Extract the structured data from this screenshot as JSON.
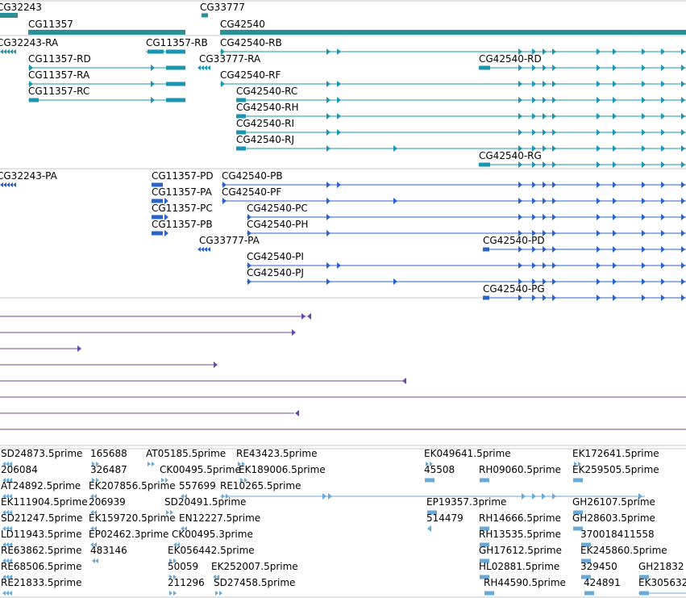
{
  "colors": {
    "gene": "#1a8a9a",
    "gene_bar": "#2a9098",
    "transcript": "#1a96b4",
    "protein": "#2a64c8",
    "lower": "#6a4aa8",
    "est": "#6aa8d8",
    "separator": "#c8c8c8",
    "text": "#000000"
  },
  "icons": {
    "forward_arrow": "arrow-right-icon",
    "reverse_arrow": "arrow-left-icon"
  },
  "genes": [
    {
      "label": "CG32243"
    },
    {
      "label": "CG33777"
    },
    {
      "label": "CG11357"
    },
    {
      "label": "CG42540"
    }
  ],
  "transcripts": [
    {
      "label": "CG32243-RA"
    },
    {
      "label": "CG11357-RB"
    },
    {
      "label": "CG42540-RB"
    },
    {
      "label": "CG11357-RD"
    },
    {
      "label": "CG33777-RA"
    },
    {
      "label": "CG42540-RD"
    },
    {
      "label": "CG11357-RA"
    },
    {
      "label": "CG42540-RF"
    },
    {
      "label": "CG11357-RC"
    },
    {
      "label": "CG42540-RC"
    },
    {
      "label": "CG42540-RH"
    },
    {
      "label": "CG42540-RI"
    },
    {
      "label": "CG42540-RJ"
    },
    {
      "label": "CG42540-RG"
    }
  ],
  "proteins": [
    {
      "label": "CG32243-PA"
    },
    {
      "label": "CG11357-PD"
    },
    {
      "label": "CG42540-PB"
    },
    {
      "label": "CG11357-PA"
    },
    {
      "label": "CG42540-PF"
    },
    {
      "label": "CG11357-PC"
    },
    {
      "label": "CG42540-PC"
    },
    {
      "label": "CG11357-PB"
    },
    {
      "label": "CG42540-PH"
    },
    {
      "label": "CG33777-PA"
    },
    {
      "label": "CG42540-PD"
    },
    {
      "label": "CG42540-PI"
    },
    {
      "label": "CG42540-PJ"
    },
    {
      "label": "CG42540-PG"
    }
  ],
  "ests": [
    {
      "label": "SD24873.5prime"
    },
    {
      "label": "165688"
    },
    {
      "label": "AT05185.5prime"
    },
    {
      "label": "RE43423.5prime"
    },
    {
      "label": "EK049641.5prime"
    },
    {
      "label": "EK172641.5prime"
    },
    {
      "label": "206084"
    },
    {
      "label": "326487"
    },
    {
      "label": "CK00495.5prime"
    },
    {
      "label": "EK189006.5prime"
    },
    {
      "label": "45508"
    },
    {
      "label": "RH09060.5prime"
    },
    {
      "label": "EK259505.5prime"
    },
    {
      "label": "AT24892.5prime"
    },
    {
      "label": "EK207856.5prime"
    },
    {
      "label": "557699"
    },
    {
      "label": "RE10265.5prime"
    },
    {
      "label": "EK111904.5prime"
    },
    {
      "label": "206939"
    },
    {
      "label": "SD20491.5prime"
    },
    {
      "label": "EP19357.3prime"
    },
    {
      "label": "GH26107.5prime"
    },
    {
      "label": "SD21247.5prime"
    },
    {
      "label": "EK159720.5prime"
    },
    {
      "label": "EN12227.5prime"
    },
    {
      "label": "514479"
    },
    {
      "label": "RH14666.5prime"
    },
    {
      "label": "GH28603.5prime"
    },
    {
      "label": "LD11943.5prime"
    },
    {
      "label": "EP02462.3prime"
    },
    {
      "label": "CK00495.3prime"
    },
    {
      "label": "RH13535.5prime"
    },
    {
      "label": "370018411558"
    },
    {
      "label": "RE63862.5prime"
    },
    {
      "label": "483146"
    },
    {
      "label": "EK056442.5prime"
    },
    {
      "label": "GH17612.5prime"
    },
    {
      "label": "EK245860.5prime"
    },
    {
      "label": "RE68506.5prime"
    },
    {
      "label": "50059"
    },
    {
      "label": "EK252007.5prime"
    },
    {
      "label": "HL02881.5prime"
    },
    {
      "label": "329450"
    },
    {
      "label": "GH21832"
    },
    {
      "label": "RE21833.5prime"
    },
    {
      "label": "211296"
    },
    {
      "label": "SD27458.5prime"
    },
    {
      "label": "RH44590.5prime"
    },
    {
      "label": "424891"
    },
    {
      "label": "EK305632"
    }
  ]
}
